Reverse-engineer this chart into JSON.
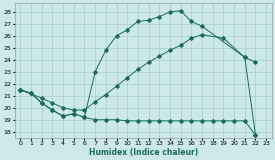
{
  "xlabel": "Humidex (Indice chaleur)",
  "bg_color": "#cce8e8",
  "grid_color": "#aacccc",
  "line_color": "#1a6b5a",
  "xlim": [
    -0.5,
    23.5
  ],
  "ylim": [
    17.5,
    28.7
  ],
  "xticks": [
    0,
    1,
    2,
    3,
    4,
    5,
    6,
    7,
    8,
    9,
    10,
    11,
    12,
    13,
    14,
    15,
    16,
    17,
    18,
    19,
    20,
    21,
    22,
    23
  ],
  "yticks": [
    18,
    19,
    20,
    21,
    22,
    23,
    24,
    25,
    26,
    27,
    28
  ],
  "line_top_x": [
    0,
    1,
    2,
    3,
    4,
    5,
    6,
    7,
    8,
    9,
    10,
    11,
    12,
    13,
    14,
    15,
    16,
    17,
    21,
    22
  ],
  "line_top_y": [
    21.5,
    21.2,
    20.4,
    19.8,
    19.3,
    19.5,
    19.2,
    23.0,
    24.8,
    26.0,
    26.5,
    27.2,
    27.3,
    27.6,
    28.0,
    28.1,
    27.2,
    26.8,
    24.2,
    23.8
  ],
  "line_mid_x": [
    0,
    2,
    3,
    4,
    5,
    6,
    7,
    8,
    9,
    10,
    11,
    12,
    13,
    14,
    15,
    16,
    17,
    19,
    21,
    22
  ],
  "line_mid_y": [
    21.5,
    20.8,
    20.4,
    20.0,
    19.8,
    19.8,
    20.5,
    21.1,
    21.8,
    22.5,
    23.2,
    23.8,
    24.3,
    24.8,
    25.2,
    25.8,
    26.1,
    25.8,
    24.2,
    17.7
  ],
  "line_bot_x": [
    0,
    1,
    2,
    3,
    4,
    5,
    6,
    7,
    8,
    9,
    10,
    11,
    12,
    13,
    14,
    15,
    16,
    17,
    18,
    19,
    20,
    21,
    22
  ],
  "line_bot_y": [
    21.5,
    21.2,
    20.4,
    19.8,
    19.3,
    19.5,
    19.2,
    19.0,
    19.0,
    19.0,
    18.9,
    18.9,
    18.9,
    18.9,
    18.9,
    18.9,
    18.9,
    18.9,
    18.9,
    18.9,
    18.9,
    18.9,
    17.7
  ]
}
